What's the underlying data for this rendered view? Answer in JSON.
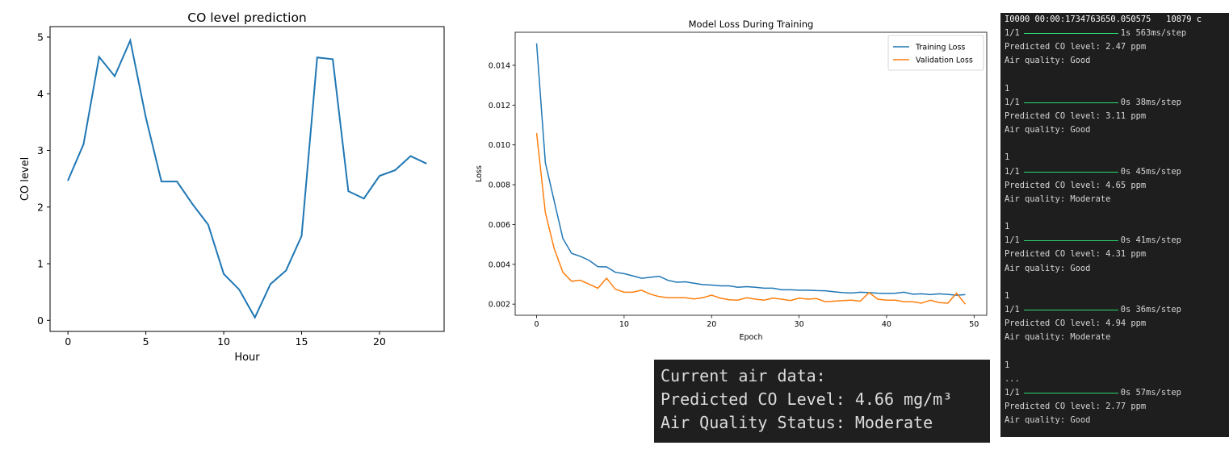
{
  "co_chart": {
    "chart_data": {
      "type": "line",
      "title": "CO level prediction",
      "xlabel": "Hour",
      "ylabel": "CO level",
      "x": [
        0,
        1,
        2,
        3,
        4,
        5,
        6,
        7,
        8,
        9,
        10,
        11,
        12,
        13,
        14,
        15,
        16,
        17,
        18,
        19,
        20,
        21,
        22,
        23
      ],
      "values": [
        2.47,
        3.11,
        4.65,
        4.31,
        4.94,
        3.58,
        2.45,
        2.45,
        2.05,
        1.69,
        0.82,
        0.54,
        0.05,
        0.64,
        0.88,
        1.49,
        4.64,
        4.61,
        2.28,
        2.15,
        2.55,
        2.65,
        2.9,
        2.77
      ],
      "xlim": [
        -1.15,
        24.15
      ],
      "ylim": [
        -0.195,
        5.185
      ],
      "xticks": [
        0,
        5,
        10,
        15,
        20
      ],
      "yticks": [
        0,
        1,
        2,
        3,
        4,
        5
      ],
      "color": "#1f77b4"
    }
  },
  "loss_chart": {
    "chart_data": {
      "type": "line",
      "title": "Model Loss During Training",
      "xlabel": "Epoch",
      "ylabel": "Loss",
      "x_count": 50,
      "series": [
        {
          "name": "Training Loss",
          "color": "#1f77b4",
          "values": [
            0.0151,
            0.0091,
            0.0072,
            0.0053,
            0.00455,
            0.0044,
            0.0042,
            0.00388,
            0.00387,
            0.0036,
            0.00353,
            0.00342,
            0.0033,
            0.00335,
            0.0034,
            0.0032,
            0.0031,
            0.00312,
            0.00305,
            0.00298,
            0.00296,
            0.00292,
            0.00292,
            0.00285,
            0.00288,
            0.00285,
            0.0028,
            0.0028,
            0.00272,
            0.00272,
            0.0027,
            0.0027,
            0.00268,
            0.00267,
            0.00262,
            0.00258,
            0.00256,
            0.0026,
            0.00258,
            0.00255,
            0.00254,
            0.00255,
            0.0026,
            0.0025,
            0.00252,
            0.00248,
            0.00252,
            0.00249,
            0.00245,
            0.00248
          ]
        },
        {
          "name": "Validation Loss",
          "color": "#ff7f0e",
          "values": [
            0.0106,
            0.0066,
            0.0048,
            0.0036,
            0.00315,
            0.0032,
            0.003,
            0.0028,
            0.0033,
            0.00275,
            0.0026,
            0.0026,
            0.0027,
            0.0025,
            0.00238,
            0.00232,
            0.00232,
            0.00232,
            0.00226,
            0.00232,
            0.00245,
            0.0023,
            0.00222,
            0.0022,
            0.00232,
            0.00225,
            0.0022,
            0.0023,
            0.00225,
            0.00218,
            0.0023,
            0.00225,
            0.00228,
            0.00212,
            0.00215,
            0.00218,
            0.0022,
            0.00215,
            0.00258,
            0.00225,
            0.0022,
            0.0022,
            0.00212,
            0.00212,
            0.00205,
            0.0022,
            0.00208,
            0.00205,
            0.00255,
            0.002
          ]
        }
      ],
      "xlim": [
        -2.45,
        51.45
      ],
      "ylim": [
        0.00144,
        0.01566
      ],
      "xticks": [
        0,
        10,
        20,
        30,
        40,
        50
      ],
      "yticks": [
        0.002,
        0.004,
        0.006,
        0.008,
        0.01,
        0.012,
        0.014
      ],
      "ytick_labels": [
        "0.002",
        "0.004",
        "0.006",
        "0.008",
        "0.010",
        "0.012",
        "0.014"
      ],
      "legend_position": "top-right"
    }
  },
  "summary": {
    "line1": "Current air data:",
    "line2": "Predicted CO Level: 4.66 mg/m³",
    "line3": "Air Quality Status: Moderate"
  },
  "terminal": {
    "header": "I0000 00:00:1734763650.050575   10879 c",
    "blocks": [
      {
        "index": "",
        "step": "1/1",
        "timing": "1s 563ms/step",
        "prediction": "Predicted CO level: 2.47 ppm",
        "quality": "Air quality: Good"
      },
      {
        "index": "1",
        "step": "1/1",
        "timing": "0s 38ms/step",
        "prediction": "Predicted CO level: 3.11 ppm",
        "quality": "Air quality: Good"
      },
      {
        "index": "1",
        "step": "1/1",
        "timing": "0s 45ms/step",
        "prediction": "Predicted CO level: 4.65 ppm",
        "quality": "Air quality: Moderate"
      },
      {
        "index": "1",
        "step": "1/1",
        "timing": "0s 41ms/step",
        "prediction": "Predicted CO level: 4.31 ppm",
        "quality": "Air quality: Good"
      },
      {
        "index": "1",
        "step": "1/1",
        "timing": "0s 36ms/step",
        "prediction": "Predicted CO level: 4.94 ppm",
        "quality": "Air quality: Moderate"
      }
    ],
    "tail_index": "1",
    "ellipsis": "...",
    "last_block": {
      "step": "1/1",
      "timing": "0s 57ms/step",
      "prediction": "Predicted CO level: 2.77 ppm",
      "quality": "Air quality: Good"
    }
  }
}
